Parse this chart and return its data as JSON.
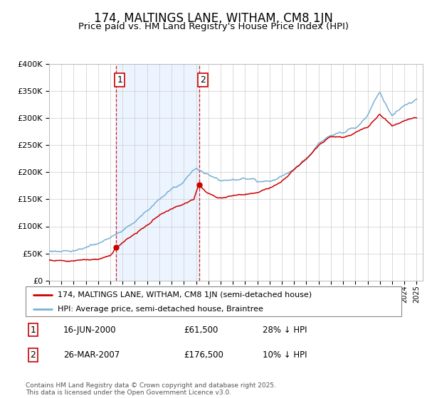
{
  "title": "174, MALTINGS LANE, WITHAM, CM8 1JN",
  "subtitle": "Price paid vs. HM Land Registry's House Price Index (HPI)",
  "legend_line1": "174, MALTINGS LANE, WITHAM, CM8 1JN (semi-detached house)",
  "legend_line2": "HPI: Average price, semi-detached house, Braintree",
  "footnote": "Contains HM Land Registry data © Crown copyright and database right 2025.\nThis data is licensed under the Open Government Licence v3.0.",
  "sale1_date": "16-JUN-2000",
  "sale1_price": "£61,500",
  "sale1_hpi": "28% ↓ HPI",
  "sale2_date": "26-MAR-2007",
  "sale2_price": "£176,500",
  "sale2_hpi": "10% ↓ HPI",
  "sale1_x": 2000.46,
  "sale1_y": 61500,
  "sale2_x": 2007.23,
  "sale2_y": 176500,
  "ylim": [
    0,
    400000
  ],
  "xlim_min": 1995,
  "xlim_max": 2025.5,
  "red_color": "#cc0000",
  "blue_color": "#7ab0d4",
  "blue_fill": "#ddeeff",
  "vline_color": "#cc0000",
  "grid_color": "#cccccc",
  "hpi_breakpoints": [
    1995,
    1996,
    1997,
    1998,
    1999,
    2000,
    2001,
    2002,
    2003,
    2004,
    2005,
    2006,
    2007,
    2008,
    2009,
    2010,
    2011,
    2012,
    2013,
    2014,
    2015,
    2016,
    2017,
    2018,
    2019,
    2020,
    2021,
    2022,
    2023,
    2024,
    2025
  ],
  "hpi_values": [
    55000,
    57000,
    60000,
    64000,
    70000,
    80000,
    95000,
    110000,
    130000,
    150000,
    165000,
    180000,
    205000,
    195000,
    182000,
    185000,
    185000,
    183000,
    185000,
    195000,
    210000,
    230000,
    255000,
    270000,
    275000,
    285000,
    310000,
    350000,
    310000,
    325000,
    335000
  ],
  "pp_breakpoints": [
    1995,
    1996,
    1997,
    1998,
    1999,
    2000.0,
    2000.5,
    2001,
    2002,
    2003,
    2004,
    2005,
    2006,
    2006.8,
    2007.23,
    2007.5,
    2008,
    2009,
    2010,
    2011,
    2012,
    2013,
    2014,
    2015,
    2016,
    2017,
    2018,
    2019,
    2020,
    2021,
    2022,
    2023,
    2024,
    2025
  ],
  "pp_values": [
    38000,
    38500,
    39000,
    40000,
    43000,
    48000,
    61500,
    72000,
    88000,
    102000,
    118000,
    128000,
    138000,
    145000,
    176500,
    168000,
    158000,
    152000,
    158000,
    162000,
    163000,
    168000,
    178000,
    195000,
    215000,
    240000,
    258000,
    258000,
    268000,
    280000,
    305000,
    285000,
    295000,
    300000
  ]
}
